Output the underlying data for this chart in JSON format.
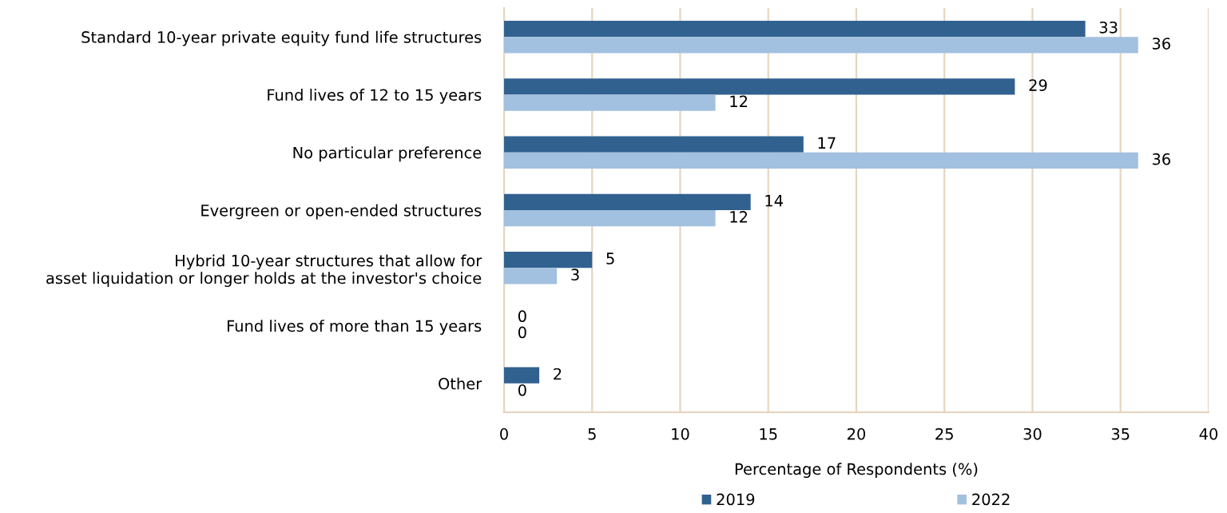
{
  "chart_data": {
    "type": "bar",
    "orientation": "horizontal",
    "categories": [
      "Standard 10-year private equity fund life structures",
      "Fund lives of 12 to 15 years",
      "No particular preference",
      "Evergreen or open-ended structures",
      "Hybrid 10-year structures that allow for\nasset liquidation or longer holds at the investor's choice",
      "Fund lives of more than 15 years",
      "Other"
    ],
    "series": [
      {
        "name": "2019",
        "color": "#31618f",
        "values": [
          33,
          29,
          17,
          14,
          5,
          0,
          2
        ]
      },
      {
        "name": "2022",
        "color": "#a2c0df",
        "values": [
          36,
          12,
          36,
          12,
          3,
          0,
          0
        ]
      }
    ],
    "xlabel": "Percentage of Respondents (%)",
    "xlim": [
      0,
      40
    ],
    "xticks": [
      0,
      5,
      10,
      15,
      20,
      25,
      30,
      35,
      40
    ],
    "grid": "x",
    "legend": "bottom",
    "data_labels": true
  }
}
